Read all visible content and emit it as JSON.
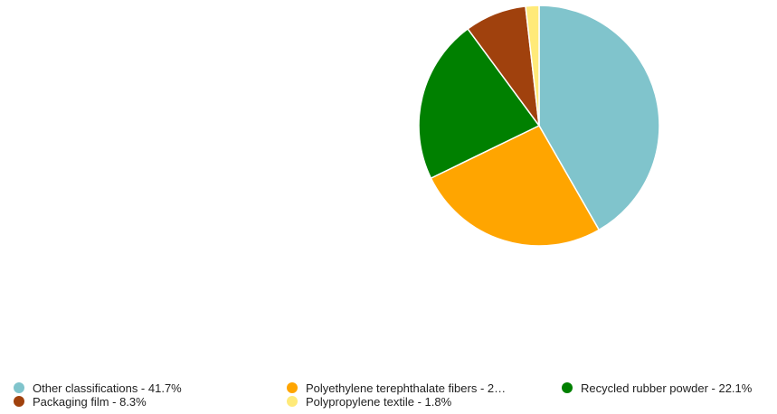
{
  "chart_data": {
    "type": "pie",
    "title": "",
    "slices": [
      {
        "label": "Other classifications",
        "value": 41.7,
        "display": "Other classifications - 41.7%",
        "color": "#80c4cc"
      },
      {
        "label": "Polyethylene terephthalate fibers",
        "value": 26.1,
        "display": "Polyethylene terephthalate fibers - 2…",
        "color": "#ffa500"
      },
      {
        "label": "Recycled rubber powder",
        "value": 22.1,
        "display": "Recycled rubber powder - 22.1%",
        "color": "#008000"
      },
      {
        "label": "Packaging film",
        "value": 8.3,
        "display": "Packaging film - 8.3%",
        "color": "#a0410d"
      },
      {
        "label": "Polypropylene textile",
        "value": 1.8,
        "display": "Polypropylene textile - 1.8%",
        "color": "#ffea79"
      }
    ],
    "start_angle": "12 o'clock",
    "direction": "clockwise",
    "legend_position": "bottom"
  }
}
